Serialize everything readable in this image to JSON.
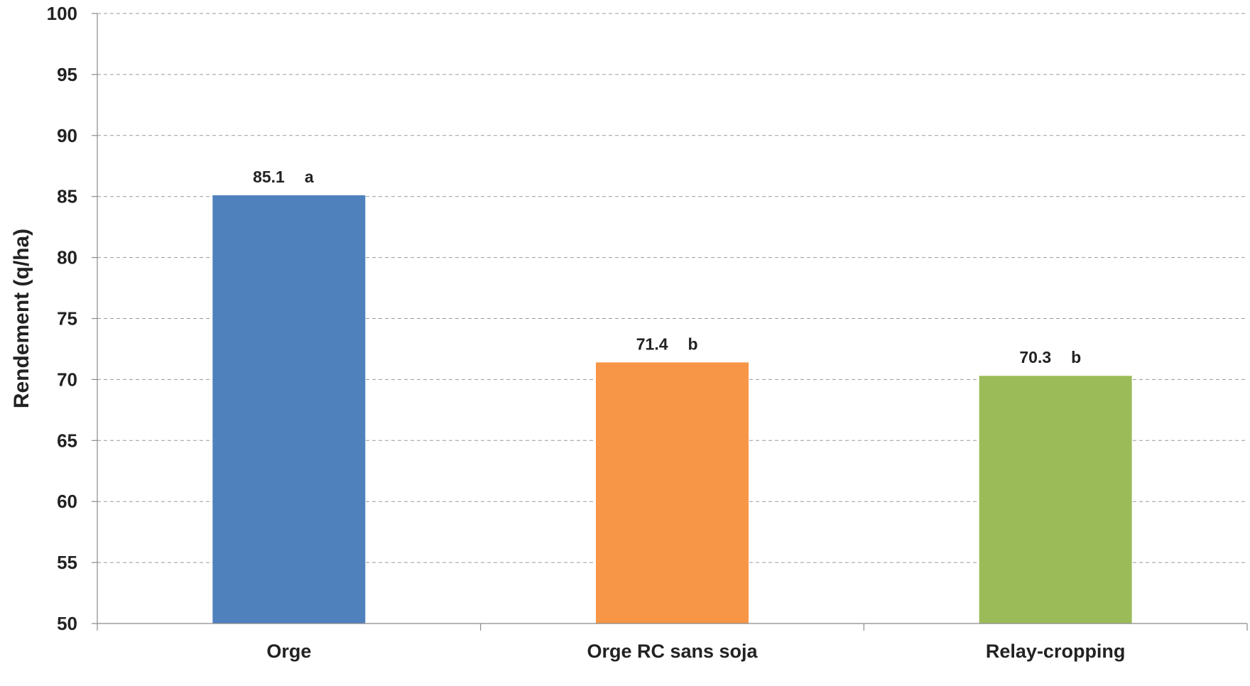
{
  "chart_data": {
    "type": "bar",
    "title": "",
    "xlabel": "",
    "ylabel": "Rendement (q/ha)",
    "ylim": [
      50,
      100
    ],
    "ytick_step": 5,
    "yticks": [
      "50",
      "55",
      "60",
      "65",
      "70",
      "75",
      "80",
      "85",
      "90",
      "95",
      "100"
    ],
    "categories": [
      "Orge",
      "Orge RC sans soja",
      "Relay-cropping"
    ],
    "values": [
      85.1,
      71.4,
      70.3
    ],
    "value_labels": [
      "85.1",
      "71.4",
      "70.3"
    ],
    "group_letters": [
      "a",
      "b",
      "b"
    ],
    "colors": [
      "#4f81bd",
      "#f79646",
      "#9bbb59"
    ],
    "grid": "horizontal dashed",
    "legend": "none"
  }
}
